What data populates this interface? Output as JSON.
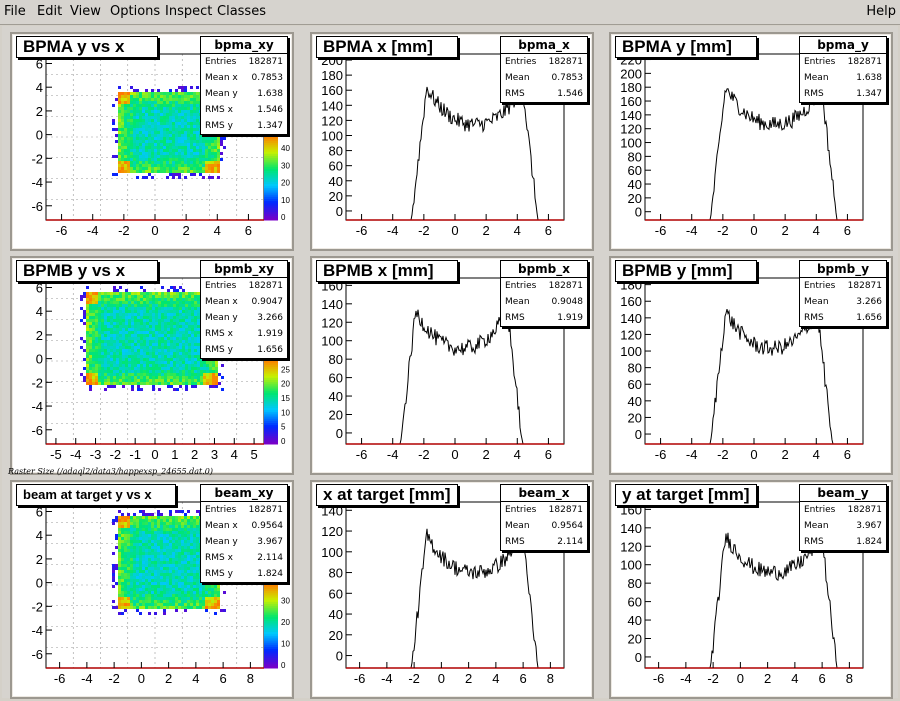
{
  "menu": {
    "items": [
      "File",
      "Edit",
      "View",
      "Options",
      "Inspect",
      "Classes"
    ],
    "help": "Help"
  },
  "caption": "Raster Size (/adaql2/data3/happexsp_24655.dat.0)",
  "rows": [
    {
      "scatter": {
        "title": "BPMA y vs x",
        "stat_name": "bpma_xy",
        "stats": [
          [
            "Entries",
            "182871"
          ],
          [
            "Mean x",
            "0.7853"
          ],
          [
            "Mean y",
            "1.638"
          ],
          [
            "RMS x",
            "1.546"
          ],
          [
            "RMS y",
            "1.347"
          ]
        ],
        "xticks": [
          "-6",
          "-4",
          "-2",
          "0",
          "2",
          "4",
          "6"
        ],
        "yticks": [
          "6",
          "4",
          "2",
          "0",
          "-2",
          "-4",
          "-6"
        ],
        "palette": [
          "0",
          "10",
          "20",
          "30",
          "40"
        ]
      },
      "hx": {
        "title": "BPMA x [mm]",
        "stat_name": "bpma_x",
        "stats": [
          [
            "Entries",
            "182871"
          ],
          [
            "Mean",
            "0.7853"
          ],
          [
            "RMS",
            "1.546"
          ]
        ],
        "xticks": [
          "-6",
          "-4",
          "-2",
          "0",
          "2",
          "4",
          "6"
        ],
        "yticks": [
          "200",
          "180",
          "160",
          "140",
          "120",
          "100",
          "80",
          "60",
          "40",
          "20",
          "0"
        ]
      },
      "hy": {
        "title": "BPMA y [mm]",
        "stat_name": "bpma_y",
        "stats": [
          [
            "Entries",
            "182871"
          ],
          [
            "Mean",
            "1.638"
          ],
          [
            "RMS",
            "1.347"
          ]
        ],
        "xticks": [
          "-6",
          "-4",
          "-2",
          "0",
          "2",
          "4",
          "6"
        ],
        "yticks": [
          "220",
          "200",
          "180",
          "160",
          "140",
          "120",
          "100",
          "80",
          "60",
          "40",
          "20",
          "0"
        ]
      }
    },
    {
      "scatter": {
        "title": "BPMB y vs x",
        "stat_name": "bpmb_xy",
        "stats": [
          [
            "Entries",
            "182871"
          ],
          [
            "Mean x",
            "0.9047"
          ],
          [
            "Mean y",
            "3.266"
          ],
          [
            "RMS x",
            "1.919"
          ],
          [
            "RMS y",
            "1.656"
          ]
        ],
        "xticks": [
          "-5",
          "-4",
          "-3",
          "-2",
          "-1",
          "0",
          "1",
          "2",
          "3",
          "4",
          "5"
        ],
        "yticks": [
          "6",
          "4",
          "2",
          "0",
          "-2",
          "-4",
          "-6"
        ],
        "palette": [
          "0",
          "5",
          "10",
          "15",
          "20",
          "25"
        ]
      },
      "hx": {
        "title": "BPMB x [mm]",
        "stat_name": "bpmb_x",
        "stats": [
          [
            "Entries",
            "182871"
          ],
          [
            "Mean",
            "0.9048"
          ],
          [
            "RMS",
            "1.919"
          ]
        ],
        "xticks": [
          "-6",
          "-4",
          "-2",
          "0",
          "2",
          "4",
          "6"
        ],
        "yticks": [
          "160",
          "140",
          "120",
          "100",
          "80",
          "60",
          "40",
          "20",
          "0"
        ]
      },
      "hy": {
        "title": "BPMB y [mm]",
        "stat_name": "bpmb_y",
        "stats": [
          [
            "Entries",
            "182871"
          ],
          [
            "Mean",
            "3.266"
          ],
          [
            "RMS",
            "1.656"
          ]
        ],
        "xticks": [
          "-6",
          "-4",
          "-2",
          "0",
          "2",
          "4",
          "6"
        ],
        "yticks": [
          "180",
          "160",
          "140",
          "120",
          "100",
          "80",
          "60",
          "40",
          "20",
          "0"
        ]
      }
    },
    {
      "scatter": {
        "title": "beam at target y vs x",
        "stat_name": "beam_xy",
        "stats": [
          [
            "Entries",
            "182871"
          ],
          [
            "Mean x",
            "0.9564"
          ],
          [
            "Mean y",
            "3.967"
          ],
          [
            "RMS x",
            "2.114"
          ],
          [
            "RMS y",
            "1.824"
          ]
        ],
        "xticks": [
          "-6",
          "-4",
          "-2",
          "0",
          "2",
          "4",
          "6",
          "8"
        ],
        "yticks": [
          "6",
          "4",
          "2",
          "0",
          "-2",
          "-4",
          "-6"
        ],
        "palette": [
          "0",
          "10",
          "20",
          "30"
        ]
      },
      "hx": {
        "title": "x at target [mm]",
        "stat_name": "beam_x",
        "stats": [
          [
            "Entries",
            "182871"
          ],
          [
            "Mean",
            "0.9564"
          ],
          [
            "RMS",
            "2.114"
          ]
        ],
        "xticks": [
          "-6",
          "-4",
          "-2",
          "0",
          "2",
          "4",
          "6",
          "8"
        ],
        "yticks": [
          "140",
          "120",
          "100",
          "80",
          "60",
          "40",
          "20",
          "0"
        ]
      },
      "hy": {
        "title": "y at target [mm]",
        "stat_name": "beam_y",
        "stats": [
          [
            "Entries",
            "182871"
          ],
          [
            "Mean",
            "3.967"
          ],
          [
            "RMS",
            "1.824"
          ]
        ],
        "xticks": [
          "-6",
          "-4",
          "-2",
          "0",
          "2",
          "4",
          "6",
          "8"
        ],
        "yticks": [
          "160",
          "140",
          "120",
          "100",
          "80",
          "60",
          "40",
          "20",
          "0"
        ]
      }
    }
  ]
}
